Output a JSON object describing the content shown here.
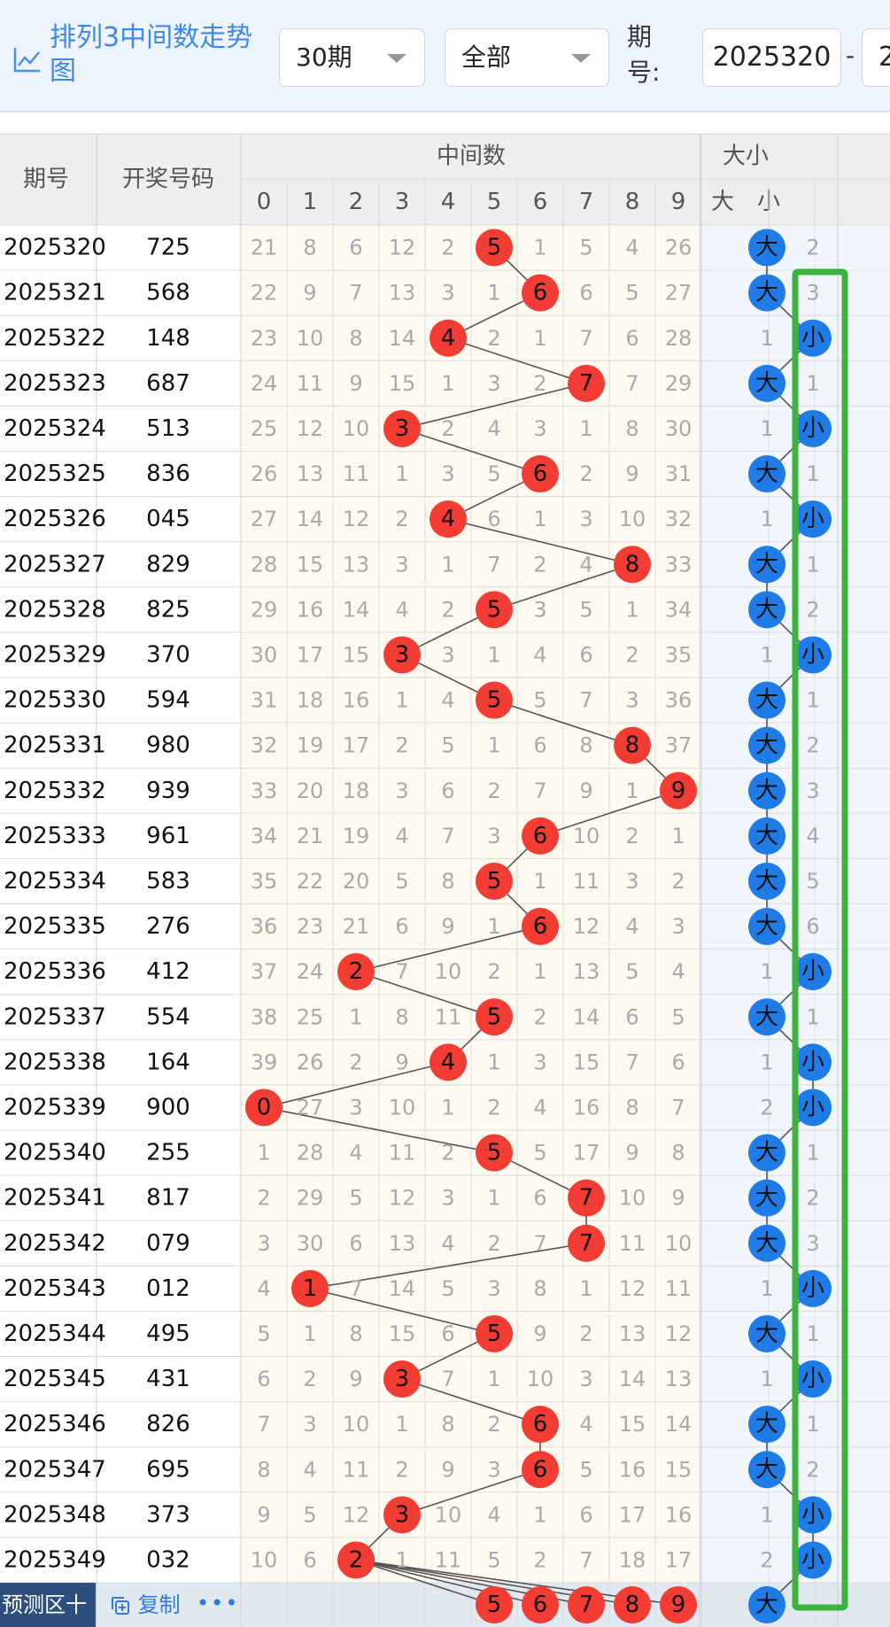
{
  "header": {
    "title": "排列3中间数走势图",
    "period_select": "30期",
    "type_select": "全部",
    "period_label": "期号:",
    "start_issue": "2025320",
    "range_separator": "-",
    "end_issue_partial": "2"
  },
  "table": {
    "col_issue": "期号",
    "col_number": "开奖号码",
    "group_mid": "中间数",
    "group_size": "大小",
    "mid_digits": [
      "0",
      "1",
      "2",
      "3",
      "4",
      "5",
      "6",
      "7",
      "8",
      "9"
    ],
    "size_cols": [
      "大",
      "小"
    ],
    "rows": [
      {
        "issue": "2025320",
        "number": "725",
        "mid": [
          21,
          8,
          6,
          12,
          2,
          "5",
          1,
          5,
          4,
          26
        ],
        "big": "大",
        "small": 2
      },
      {
        "issue": "2025321",
        "number": "568",
        "mid": [
          22,
          9,
          7,
          13,
          3,
          1,
          "6",
          6,
          5,
          27
        ],
        "big": "大",
        "small": 3
      },
      {
        "issue": "2025322",
        "number": "148",
        "mid": [
          23,
          10,
          8,
          14,
          "4",
          2,
          1,
          7,
          6,
          28
        ],
        "big": 1,
        "small": "小"
      },
      {
        "issue": "2025323",
        "number": "687",
        "mid": [
          24,
          11,
          9,
          15,
          1,
          3,
          2,
          "7",
          7,
          29
        ],
        "big": "大",
        "small": 1
      },
      {
        "issue": "2025324",
        "number": "513",
        "mid": [
          25,
          12,
          10,
          "3",
          2,
          4,
          3,
          1,
          8,
          30
        ],
        "big": 1,
        "small": "小"
      },
      {
        "issue": "2025325",
        "number": "836",
        "mid": [
          26,
          13,
          11,
          1,
          3,
          5,
          "6",
          2,
          9,
          31
        ],
        "big": "大",
        "small": 1
      },
      {
        "issue": "2025326",
        "number": "045",
        "mid": [
          27,
          14,
          12,
          2,
          "4",
          6,
          1,
          3,
          10,
          32
        ],
        "big": 1,
        "small": "小"
      },
      {
        "issue": "2025327",
        "number": "829",
        "mid": [
          28,
          15,
          13,
          3,
          1,
          7,
          2,
          4,
          "8",
          33
        ],
        "big": "大",
        "small": 1
      },
      {
        "issue": "2025328",
        "number": "825",
        "mid": [
          29,
          16,
          14,
          4,
          2,
          "5",
          3,
          5,
          1,
          34
        ],
        "big": "大",
        "small": 2
      },
      {
        "issue": "2025329",
        "number": "370",
        "mid": [
          30,
          17,
          15,
          "3",
          3,
          1,
          4,
          6,
          2,
          35
        ],
        "big": 1,
        "small": "小"
      },
      {
        "issue": "2025330",
        "number": "594",
        "mid": [
          31,
          18,
          16,
          1,
          4,
          "5",
          5,
          7,
          3,
          36
        ],
        "big": "大",
        "small": 1
      },
      {
        "issue": "2025331",
        "number": "980",
        "mid": [
          32,
          19,
          17,
          2,
          5,
          1,
          6,
          8,
          "8",
          37
        ],
        "big": "大",
        "small": 2
      },
      {
        "issue": "2025332",
        "number": "939",
        "mid": [
          33,
          20,
          18,
          3,
          6,
          2,
          7,
          9,
          1,
          "9"
        ],
        "big": "大",
        "small": 3
      },
      {
        "issue": "2025333",
        "number": "961",
        "mid": [
          34,
          21,
          19,
          4,
          7,
          3,
          "6",
          10,
          2,
          1
        ],
        "big": "大",
        "small": 4
      },
      {
        "issue": "2025334",
        "number": "583",
        "mid": [
          35,
          22,
          20,
          5,
          8,
          "5",
          1,
          11,
          3,
          2
        ],
        "big": "大",
        "small": 5
      },
      {
        "issue": "2025335",
        "number": "276",
        "mid": [
          36,
          23,
          21,
          6,
          9,
          1,
          "6",
          12,
          4,
          3
        ],
        "big": "大",
        "small": 6
      },
      {
        "issue": "2025336",
        "number": "412",
        "mid": [
          37,
          24,
          "2",
          7,
          10,
          2,
          1,
          13,
          5,
          4
        ],
        "big": 1,
        "small": "小"
      },
      {
        "issue": "2025337",
        "number": "554",
        "mid": [
          38,
          25,
          1,
          8,
          11,
          "5",
          2,
          14,
          6,
          5
        ],
        "big": "大",
        "small": 1
      },
      {
        "issue": "2025338",
        "number": "164",
        "mid": [
          39,
          26,
          2,
          9,
          "4",
          1,
          3,
          15,
          7,
          6
        ],
        "big": 1,
        "small": "小"
      },
      {
        "issue": "2025339",
        "number": "900",
        "mid": [
          "0",
          27,
          3,
          10,
          1,
          2,
          4,
          16,
          8,
          7
        ],
        "big": 2,
        "small": "小"
      },
      {
        "issue": "2025340",
        "number": "255",
        "mid": [
          1,
          28,
          4,
          11,
          2,
          "5",
          5,
          17,
          9,
          8
        ],
        "big": "大",
        "small": 1
      },
      {
        "issue": "2025341",
        "number": "817",
        "mid": [
          2,
          29,
          5,
          12,
          3,
          1,
          6,
          "7",
          10,
          9
        ],
        "big": "大",
        "small": 2
      },
      {
        "issue": "2025342",
        "number": "079",
        "mid": [
          3,
          30,
          6,
          13,
          4,
          2,
          7,
          "7",
          11,
          10
        ],
        "big": "大",
        "small": 3
      },
      {
        "issue": "2025343",
        "number": "012",
        "mid": [
          4,
          "1",
          7,
          14,
          5,
          3,
          8,
          1,
          12,
          11
        ],
        "big": 1,
        "small": "小"
      },
      {
        "issue": "2025344",
        "number": "495",
        "mid": [
          5,
          1,
          8,
          15,
          6,
          "5",
          9,
          2,
          13,
          12
        ],
        "big": "大",
        "small": 1
      },
      {
        "issue": "2025345",
        "number": "431",
        "mid": [
          6,
          2,
          9,
          "3",
          7,
          1,
          10,
          3,
          14,
          13
        ],
        "big": 1,
        "small": "小"
      },
      {
        "issue": "2025346",
        "number": "826",
        "mid": [
          7,
          3,
          10,
          1,
          8,
          2,
          "6",
          4,
          15,
          14
        ],
        "big": "大",
        "small": 1
      },
      {
        "issue": "2025347",
        "number": "695",
        "mid": [
          8,
          4,
          11,
          2,
          9,
          3,
          "6",
          5,
          16,
          15
        ],
        "big": "大",
        "small": 2
      },
      {
        "issue": "2025348",
        "number": "373",
        "mid": [
          9,
          5,
          12,
          "3",
          10,
          4,
          1,
          6,
          17,
          16
        ],
        "big": 1,
        "small": "小"
      },
      {
        "issue": "2025349",
        "number": "032",
        "mid": [
          10,
          6,
          "2",
          1,
          11,
          5,
          2,
          7,
          18,
          17
        ],
        "big": 2,
        "small": "小"
      }
    ],
    "prediction_balls": [
      "5",
      "6",
      "7",
      "8",
      "9"
    ],
    "prediction_size": "大"
  },
  "footer": {
    "predict_label": "预测区十",
    "copy_label": "复制",
    "more_label": "•••"
  },
  "colors": {
    "red_ball": "#f23c34",
    "blue_ball": "#1f7be6",
    "green_box": "#3cb33c",
    "mid_bg": "#fffaf0",
    "size_bg": "#f1f6fd"
  }
}
